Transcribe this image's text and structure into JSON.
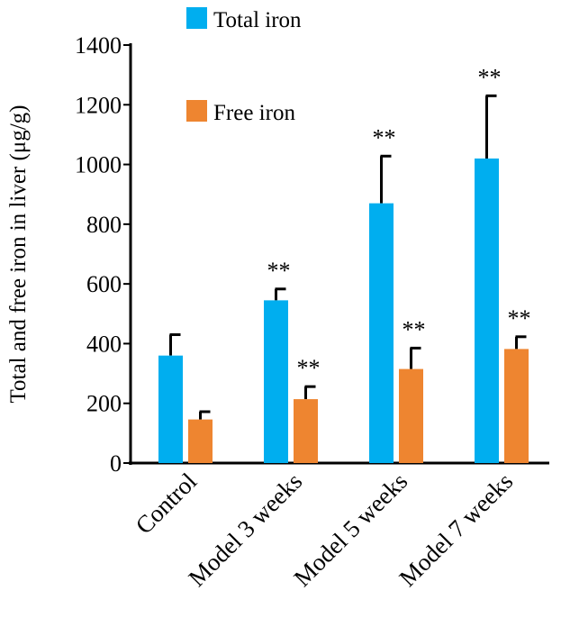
{
  "chart_data": {
    "type": "bar",
    "title": "",
    "xlabel": "",
    "ylabel": "Total and free iron in liver (μg/g)",
    "ylim": [
      0,
      1400
    ],
    "yticks": [
      "0",
      "200",
      "400",
      "600",
      "800",
      "1000",
      "1200",
      "1400"
    ],
    "categories": [
      "Control",
      "Model 3 weeks",
      "Model 5 weeks",
      "Model 7 weeks"
    ],
    "legend_position": "top",
    "series": [
      {
        "name": "Total iron",
        "color": "#00AEEF",
        "values": [
          360,
          545,
          870,
          1020
        ],
        "errors": [
          70,
          38,
          158,
          210
        ],
        "significance": [
          "",
          "**",
          "**",
          "**"
        ]
      },
      {
        "name": "Free iron",
        "color": "#EE8530",
        "values": [
          146,
          214,
          315,
          382
        ],
        "errors": [
          26,
          42,
          70,
          41
        ],
        "significance": [
          "",
          "**",
          "**",
          "**"
        ]
      }
    ]
  }
}
